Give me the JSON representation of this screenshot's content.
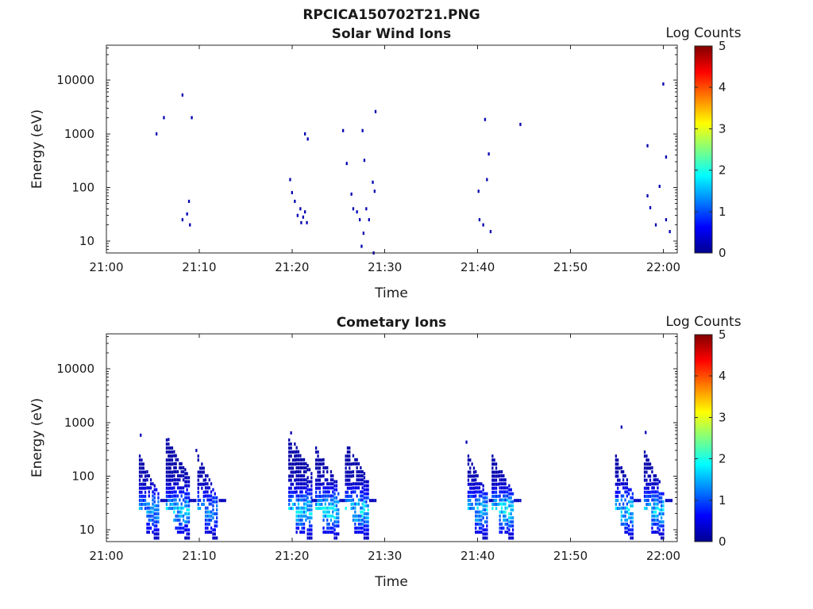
{
  "figure_title": "RPCICA150702T21.PNG",
  "colorbar": {
    "label": "Log Counts",
    "ticks": [
      "0",
      "1",
      "2",
      "3",
      "4",
      "5"
    ],
    "range": [
      0,
      5
    ],
    "colormap": [
      "#00008f",
      "#0000ff",
      "#0080ff",
      "#00ffff",
      "#80ff80",
      "#ffff00",
      "#ff8000",
      "#ff0000",
      "#800000"
    ]
  },
  "chart_data": [
    {
      "type": "heatmap",
      "title": "Solar Wind Ions",
      "xlabel": "Time",
      "ylabel": "Energy (eV)",
      "yscale": "log",
      "ylim": [
        6,
        45000
      ],
      "xlim_minutes": [
        0,
        61.5
      ],
      "xticks": [
        {
          "v": 0,
          "t": "21:00"
        },
        {
          "v": 10,
          "t": "21:10"
        },
        {
          "v": 20,
          "t": "21:20"
        },
        {
          "v": 30,
          "t": "21:30"
        },
        {
          "v": 40,
          "t": "21:40"
        },
        {
          "v": 50,
          "t": "21:50"
        },
        {
          "v": 60,
          "t": "22:00"
        }
      ],
      "yticks": [
        {
          "v": 10,
          "t": "10"
        },
        {
          "v": 100,
          "t": "100"
        },
        {
          "v": 1000,
          "t": "1000"
        },
        {
          "v": 10000,
          "t": "10000"
        }
      ],
      "cells": [
        [
          5.3,
          1000,
          0.2
        ],
        [
          6.1,
          2000,
          0.2
        ],
        [
          8.1,
          5300,
          0.2
        ],
        [
          9.1,
          2000,
          0.2
        ],
        [
          8.1,
          25,
          0.2
        ],
        [
          8.6,
          32,
          0.2
        ],
        [
          8.8,
          55,
          0.2
        ],
        [
          8.9,
          20,
          0.2
        ],
        [
          19.7,
          140,
          0.2
        ],
        [
          19.9,
          80,
          0.2
        ],
        [
          20.2,
          55,
          0.2
        ],
        [
          20.5,
          30,
          0.2
        ],
        [
          20.8,
          40,
          0.2
        ],
        [
          20.9,
          22,
          0.2
        ],
        [
          21.1,
          28,
          0.2
        ],
        [
          21.3,
          35,
          0.2
        ],
        [
          21.5,
          22,
          0.2
        ],
        [
          21.3,
          1000,
          0.2
        ],
        [
          21.6,
          800,
          0.2
        ],
        [
          25.4,
          1150,
          0.2
        ],
        [
          25.8,
          280,
          0.2
        ],
        [
          26.3,
          75,
          0.2
        ],
        [
          26.5,
          40,
          0.2
        ],
        [
          26.9,
          35,
          0.2
        ],
        [
          27.2,
          25,
          0.2
        ],
        [
          27.5,
          1150,
          0.2
        ],
        [
          27.7,
          320,
          0.2
        ],
        [
          27.9,
          40,
          0.2
        ],
        [
          27.6,
          14,
          0.2
        ],
        [
          27.4,
          8,
          0.2
        ],
        [
          28.2,
          25,
          0.2
        ],
        [
          28.6,
          125,
          0.2
        ],
        [
          28.8,
          85,
          0.2
        ],
        [
          28.9,
          2600,
          0.2
        ],
        [
          28.7,
          6,
          0.2
        ],
        [
          40.0,
          85,
          0.2
        ],
        [
          40.1,
          25,
          0.2
        ],
        [
          40.5,
          20,
          0.2
        ],
        [
          40.7,
          1850,
          0.2
        ],
        [
          40.9,
          140,
          0.2
        ],
        [
          41.1,
          420,
          0.2
        ],
        [
          41.3,
          15,
          0.2
        ],
        [
          44.5,
          1500,
          0.2
        ],
        [
          58.2,
          600,
          0.2
        ],
        [
          58.2,
          70,
          0.2
        ],
        [
          58.5,
          42,
          0.2
        ],
        [
          59.1,
          20,
          0.2
        ],
        [
          59.5,
          105,
          0.2
        ],
        [
          59.9,
          8500,
          0.2
        ],
        [
          60.2,
          370,
          0.2
        ],
        [
          60.2,
          25,
          0.2
        ],
        [
          60.6,
          15,
          0.2
        ]
      ]
    },
    {
      "type": "heatmap",
      "title": "Cometary Ions",
      "xlabel": "Time",
      "ylabel": "Energy (eV)",
      "yscale": "log",
      "ylim": [
        6,
        45000
      ],
      "xlim_minutes": [
        0,
        61.5
      ],
      "xticks": [
        {
          "v": 0,
          "t": "21:00"
        },
        {
          "v": 10,
          "t": "21:10"
        },
        {
          "v": 20,
          "t": "21:20"
        },
        {
          "v": 30,
          "t": "21:30"
        },
        {
          "v": 40,
          "t": "21:40"
        },
        {
          "v": 50,
          "t": "21:50"
        },
        {
          "v": 60,
          "t": "22:00"
        }
      ],
      "yticks": [
        {
          "v": 10,
          "t": "10"
        },
        {
          "v": 100,
          "t": "100"
        },
        {
          "v": 1000,
          "t": "1000"
        },
        {
          "v": 10000,
          "t": "10000"
        }
      ],
      "bursts": [
        {
          "t": 3.5,
          "w": 2.3,
          "top": 250,
          "peak": 1.5
        },
        {
          "t": 6.4,
          "w": 2.5,
          "top": 500,
          "peak": 1.8
        },
        {
          "t": 9.8,
          "w": 2.3,
          "top": 250,
          "peak": 1.4
        },
        {
          "t": 19.6,
          "w": 2.5,
          "top": 600,
          "peak": 1.8
        },
        {
          "t": 22.5,
          "w": 2.6,
          "top": 350,
          "peak": 2.0
        },
        {
          "t": 25.7,
          "w": 2.6,
          "top": 450,
          "peak": 1.9
        },
        {
          "t": 38.9,
          "w": 2.3,
          "top": 250,
          "peak": 1.7
        },
        {
          "t": 41.5,
          "w": 2.4,
          "top": 250,
          "peak": 2.0
        },
        {
          "t": 54.8,
          "w": 2.0,
          "top": 250,
          "peak": 1.8
        },
        {
          "t": 57.9,
          "w": 2.3,
          "top": 300,
          "peak": 1.8
        }
      ],
      "isolated": [
        [
          3.6,
          580,
          0.2
        ],
        [
          6.6,
          480,
          0.2
        ],
        [
          9.6,
          300,
          0.2
        ],
        [
          19.8,
          640,
          0.2
        ],
        [
          38.7,
          430,
          0.2
        ],
        [
          55.4,
          820,
          0.2
        ],
        [
          58.0,
          650,
          0.2
        ]
      ]
    }
  ]
}
